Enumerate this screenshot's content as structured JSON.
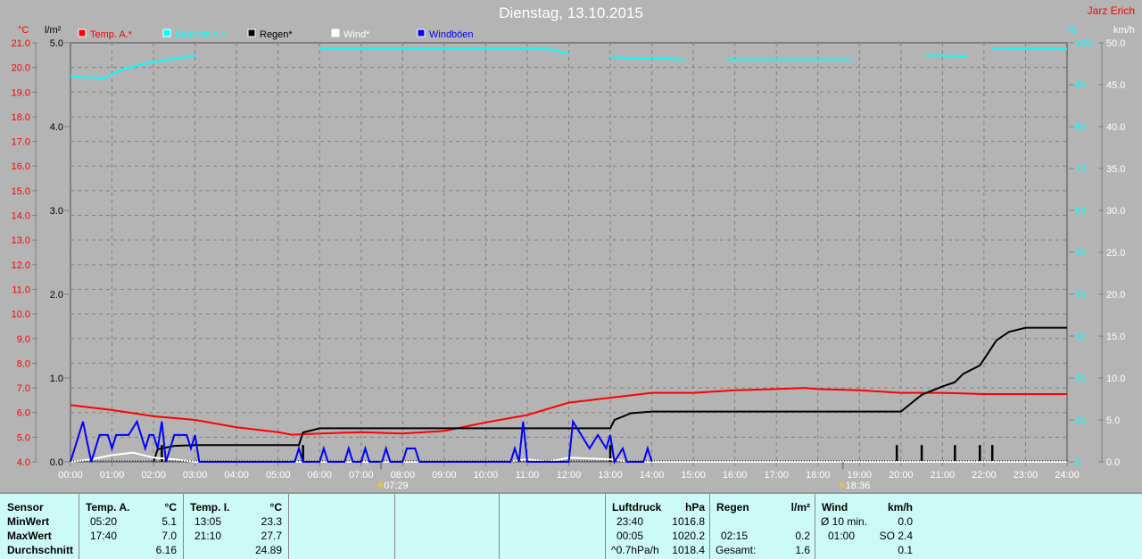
{
  "title": "Dienstag, 13.10.2015",
  "author": "Jarz Erich",
  "chart_data": {
    "type": "line",
    "xlabel": "",
    "x_range": [
      0,
      24
    ],
    "x_ticks": [
      "00:00",
      "01:00",
      "02:00",
      "03:00",
      "04:00",
      "05:00",
      "06:00",
      "07:00",
      "08:00",
      "09:00",
      "10:00",
      "11:00",
      "12:00",
      "13:00",
      "14:00",
      "15:00",
      "16:00",
      "17:00",
      "18:00",
      "19:00",
      "20:00",
      "21:00",
      "22:00",
      "23:00",
      "24:00"
    ],
    "grid": true,
    "axes": {
      "temp": {
        "unit": "°C",
        "range": [
          4,
          21
        ],
        "color": "#ff0000",
        "ticks": [
          "21.0",
          "20.0",
          "19.0",
          "18.0",
          "17.0",
          "16.0",
          "15.0",
          "14.0",
          "13.0",
          "12.0",
          "11.0",
          "10.0",
          "9.0",
          "8.0",
          "7.0",
          "6.0",
          "5.0",
          "4.0"
        ]
      },
      "rain": {
        "unit": "l/m²",
        "range": [
          0,
          5
        ],
        "color": "#000000",
        "ticks": [
          "5.0",
          "4.0",
          "3.0",
          "2.0",
          "1.0",
          "0.0"
        ]
      },
      "humidity": {
        "unit": "%",
        "range": [
          0,
          100
        ],
        "color": "#00ffff",
        "ticks": [
          "100",
          "90",
          "80",
          "70",
          "60",
          "50",
          "40",
          "30",
          "20",
          "10",
          "0"
        ]
      },
      "wind": {
        "unit": "km/h",
        "range": [
          0,
          50
        ],
        "color": "#ffffff",
        "ticks": [
          "50.0",
          "45.0",
          "40.0",
          "35.0",
          "30.0",
          "25.0",
          "20.0",
          "15.0",
          "10.0",
          "5.0",
          "0.0"
        ]
      }
    },
    "legend": [
      {
        "label": "Temp. A.*",
        "color": "#ff0000"
      },
      {
        "label": "Feuchte A.*",
        "color": "#00ffff"
      },
      {
        "label": "Regen*",
        "color": "#000000"
      },
      {
        "label": "Wind*",
        "color": "#ffffff"
      },
      {
        "label": "Windböen",
        "color": "#0000ff"
      }
    ],
    "legend_position": "top",
    "sun": {
      "sunrise": "07:29",
      "sunset": "18:36",
      "sunrise_h": 7.48,
      "sunset_h": 18.6
    },
    "series": [
      {
        "name": "Temp. A.*",
        "axis": "temp",
        "color": "#ff0000",
        "points": [
          [
            0,
            6.3
          ],
          [
            1,
            6.1
          ],
          [
            2,
            5.85
          ],
          [
            3,
            5.7
          ],
          [
            4,
            5.4
          ],
          [
            5,
            5.2
          ],
          [
            5.33,
            5.1
          ],
          [
            6,
            5.15
          ],
          [
            7,
            5.2
          ],
          [
            8,
            5.15
          ],
          [
            9,
            5.25
          ],
          [
            10,
            5.6
          ],
          [
            11,
            5.9
          ],
          [
            12,
            6.4
          ],
          [
            13,
            6.6
          ],
          [
            14,
            6.8
          ],
          [
            15,
            6.8
          ],
          [
            16,
            6.9
          ],
          [
            17,
            6.95
          ],
          [
            17.67,
            7.0
          ],
          [
            18,
            6.95
          ],
          [
            19,
            6.9
          ],
          [
            20,
            6.8
          ],
          [
            21,
            6.8
          ],
          [
            22,
            6.75
          ],
          [
            24,
            6.75
          ]
        ]
      },
      {
        "name": "Feuchte A.*",
        "axis": "humidity",
        "color": "#00ffff",
        "points": [
          [
            0,
            92
          ],
          [
            0.8,
            91.5
          ],
          [
            1.2,
            93.5
          ],
          [
            2,
            95.5
          ],
          [
            3,
            96.8
          ],
          [
            3.3,
            null
          ],
          [
            5.5,
            97.5
          ],
          [
            5.7,
            null
          ],
          [
            6,
            98.5
          ],
          [
            11.5,
            98.5
          ],
          [
            12,
            97.5
          ],
          [
            12.5,
            null
          ],
          [
            13,
            96.5
          ],
          [
            14.8,
            96
          ],
          [
            15,
            null
          ],
          [
            15.8,
            96
          ],
          [
            17.5,
            96
          ],
          [
            18.8,
            96
          ],
          [
            19,
            null
          ],
          [
            20.6,
            97
          ],
          [
            21.6,
            96.8
          ],
          [
            22,
            null
          ],
          [
            22.2,
            98.5
          ],
          [
            24,
            98.5
          ]
        ]
      },
      {
        "name": "Regen*",
        "axis": "rain",
        "color": "#000000",
        "points": [
          [
            2,
            0
          ],
          [
            2.1,
            0.15
          ],
          [
            2.5,
            0.19
          ],
          [
            3,
            0.2
          ],
          [
            5.5,
            0.2
          ],
          [
            5.6,
            0.35
          ],
          [
            6,
            0.4
          ],
          [
            13,
            0.4
          ],
          [
            13.1,
            0.5
          ],
          [
            13.5,
            0.58
          ],
          [
            14,
            0.6
          ],
          [
            20,
            0.6
          ],
          [
            20.2,
            0.68
          ],
          [
            20.5,
            0.8
          ],
          [
            21,
            0.9
          ],
          [
            21.3,
            0.95
          ],
          [
            21.5,
            1.05
          ],
          [
            21.9,
            1.15
          ],
          [
            22.1,
            1.3
          ],
          [
            22.3,
            1.45
          ],
          [
            22.6,
            1.55
          ],
          [
            23,
            1.6
          ],
          [
            24,
            1.6
          ]
        ]
      },
      {
        "name": "Regen bars",
        "axis": "rain",
        "color": "#000000",
        "bars": [
          [
            2.2,
            0.2
          ],
          [
            5.6,
            0.2
          ],
          [
            13.0,
            0.2
          ],
          [
            19.9,
            0.2
          ],
          [
            20.5,
            0.2
          ],
          [
            21.3,
            0.2
          ],
          [
            21.9,
            0.2
          ],
          [
            22.2,
            0.2
          ]
        ]
      },
      {
        "name": "Wind*",
        "axis": "wind",
        "color": "#ffffff",
        "points": [
          [
            0,
            0
          ],
          [
            0.5,
            0.3
          ],
          [
            1,
            0.8
          ],
          [
            1.5,
            1.1
          ],
          [
            2,
            0.5
          ],
          [
            2.5,
            0.3
          ],
          [
            3,
            0
          ],
          [
            10.5,
            0
          ],
          [
            11,
            0.3
          ],
          [
            11.5,
            0
          ],
          [
            12,
            0.5
          ],
          [
            12.5,
            0.4
          ],
          [
            13,
            0.3
          ],
          [
            13.5,
            0
          ],
          [
            24,
            0
          ]
        ]
      },
      {
        "name": "Windböen",
        "axis": "wind",
        "color": "#0000ff",
        "points": [
          [
            0,
            0
          ],
          [
            0.3,
            4.8
          ],
          [
            0.5,
            0
          ],
          [
            0.7,
            3.2
          ],
          [
            0.9,
            3.2
          ],
          [
            1.0,
            1.6
          ],
          [
            1.1,
            3.2
          ],
          [
            1.4,
            3.2
          ],
          [
            1.6,
            4.8
          ],
          [
            1.8,
            1.6
          ],
          [
            1.9,
            3.2
          ],
          [
            2.0,
            3.2
          ],
          [
            2.1,
            1.6
          ],
          [
            2.2,
            4.8
          ],
          [
            2.3,
            0
          ],
          [
            2.5,
            3.2
          ],
          [
            2.8,
            3.2
          ],
          [
            2.9,
            1.6
          ],
          [
            3.0,
            3.2
          ],
          [
            3.1,
            0
          ],
          [
            5.4,
            0
          ],
          [
            5.5,
            1.6
          ],
          [
            5.6,
            0
          ],
          [
            6.0,
            0
          ],
          [
            6.1,
            1.6
          ],
          [
            6.2,
            0
          ],
          [
            6.6,
            0
          ],
          [
            6.7,
            1.6
          ],
          [
            6.8,
            0
          ],
          [
            7.0,
            0
          ],
          [
            7.1,
            1.6
          ],
          [
            7.2,
            0
          ],
          [
            7.5,
            0
          ],
          [
            7.6,
            1.6
          ],
          [
            7.7,
            0
          ],
          [
            8.0,
            0
          ],
          [
            8.1,
            1.6
          ],
          [
            8.3,
            1.6
          ],
          [
            8.4,
            0
          ],
          [
            10.6,
            0
          ],
          [
            10.7,
            1.6
          ],
          [
            10.8,
            0
          ],
          [
            10.9,
            4.8
          ],
          [
            11.0,
            0
          ],
          [
            12.0,
            0
          ],
          [
            12.1,
            4.8
          ],
          [
            12.3,
            3.2
          ],
          [
            12.5,
            1.6
          ],
          [
            12.7,
            3.2
          ],
          [
            12.9,
            1.6
          ],
          [
            13.0,
            3.2
          ],
          [
            13.1,
            0
          ],
          [
            13.3,
            1.6
          ],
          [
            13.4,
            0
          ],
          [
            13.8,
            0
          ],
          [
            13.9,
            1.6
          ],
          [
            14.0,
            0
          ]
        ]
      }
    ]
  },
  "stats": {
    "sensor": {
      "header": "Sensor",
      "rows": [
        "MinWert",
        "MaxWert",
        "Durchschnitt"
      ]
    },
    "temp_a": {
      "header": "Temp. A.",
      "unit": "°C",
      "min_time": "05:20",
      "min": "5.1",
      "max_time": "17:40",
      "max": "7.0",
      "avg": "6.16"
    },
    "temp_i": {
      "header": "Temp. I.",
      "unit": "°C",
      "min_time": "13:05",
      "min": "23.3",
      "max_time": "21:10",
      "max": "27.7",
      "avg": "24.89"
    },
    "pressure": {
      "header": "Luftdruck",
      "unit": "hPa",
      "r1_label": "23:40",
      "r1": "1016.8",
      "r2_label": "00:05",
      "r2": "1020.2",
      "r3_label": "^0.7hPa/h",
      "r3": "1018.4"
    },
    "rain": {
      "header": "Regen",
      "unit": "l/m²",
      "r2_label": "02:15",
      "r2": "0.2",
      "r3_label": "Gesamt:",
      "r3": "1.6"
    },
    "wind": {
      "header": "Wind",
      "unit": "km/h",
      "r1_label": "Ø 10 min.",
      "r1": "0.0",
      "r2_label": "01:00",
      "r2": "SO 2.4",
      "r3": "0.1"
    }
  }
}
